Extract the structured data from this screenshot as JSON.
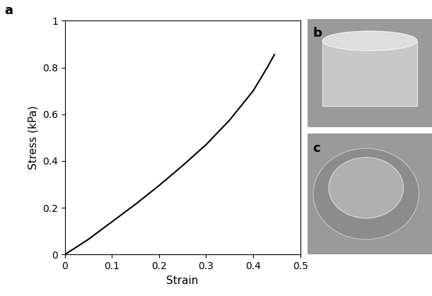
{
  "chart_data": {
    "type": "line",
    "panel_label": "a",
    "x_label": "Strain",
    "y_label": "Stress (kPa)",
    "x": [
      0,
      0.05,
      0.1,
      0.15,
      0.2,
      0.25,
      0.3,
      0.35,
      0.4,
      0.43,
      0.445
    ],
    "series": [
      {
        "color": "#000000",
        "line_style": "solid",
        "values": [
          0,
          0.065,
          0.14,
          0.215,
          0.295,
          0.38,
          0.47,
          0.575,
          0.7,
          0.8,
          0.855
        ]
      }
    ],
    "xlim": [
      0,
      0.5
    ],
    "xticks": [
      0,
      0.1,
      0.2,
      0.3,
      0.4,
      0.5
    ],
    "ylim": [
      0,
      1
    ],
    "yticks": [
      0,
      0.2,
      0.4,
      0.6,
      0.8,
      1
    ],
    "grid": false
  },
  "photos": [
    {
      "panel_label": "b"
    },
    {
      "panel_label": "c"
    }
  ]
}
